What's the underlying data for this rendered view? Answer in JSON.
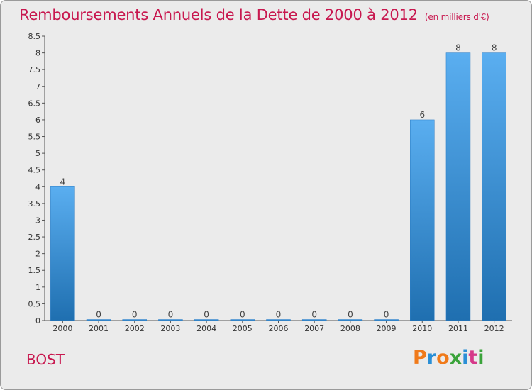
{
  "header": {
    "title": "Remboursements Annuels de la Dette de 2000 à 2012",
    "unit": "(en milliers d'€)"
  },
  "footer": {
    "city": "BOST",
    "logo_text": "Proxiti",
    "logo_colors": [
      "#f07a1a",
      "#2a8fd6",
      "#f07a1a",
      "#3aa33a",
      "#2a8fd6",
      "#d63a8a",
      "#3aa33a"
    ]
  },
  "colors": {
    "title": "#c8184f",
    "bar_light": "#5aaef0",
    "bar_dark": "#1f6fb0",
    "background": "#ebebeb"
  },
  "chart_data": {
    "type": "bar",
    "title": "Remboursements Annuels de la Dette de 2000 à 2012",
    "xlabel": "",
    "ylabel": "",
    "categories": [
      "2000",
      "2001",
      "2002",
      "2003",
      "2004",
      "2005",
      "2006",
      "2007",
      "2008",
      "2009",
      "2010",
      "2011",
      "2012"
    ],
    "values": [
      4,
      0,
      0,
      0,
      0,
      0,
      0,
      0,
      0,
      0,
      6,
      8,
      8
    ],
    "data_labels": [
      "4",
      "0",
      "0",
      "0",
      "0",
      "0",
      "0",
      "0",
      "0",
      "0",
      "6",
      "8",
      "8"
    ],
    "ylim": [
      0,
      8.5
    ],
    "yticks": [
      0,
      0.5,
      1,
      1.5,
      2,
      2.5,
      3,
      3.5,
      4,
      4.5,
      5,
      5.5,
      6,
      6.5,
      7,
      7.5,
      8,
      8.5
    ],
    "ytick_labels": [
      "0",
      "0.5",
      "1",
      "1.5",
      "2",
      "2.5",
      "3",
      "3.5",
      "4",
      "4.5",
      "5",
      "5.5",
      "6",
      "6.5",
      "7",
      "7.5",
      "8",
      "8.5"
    ],
    "grid": false,
    "legend": "none"
  }
}
